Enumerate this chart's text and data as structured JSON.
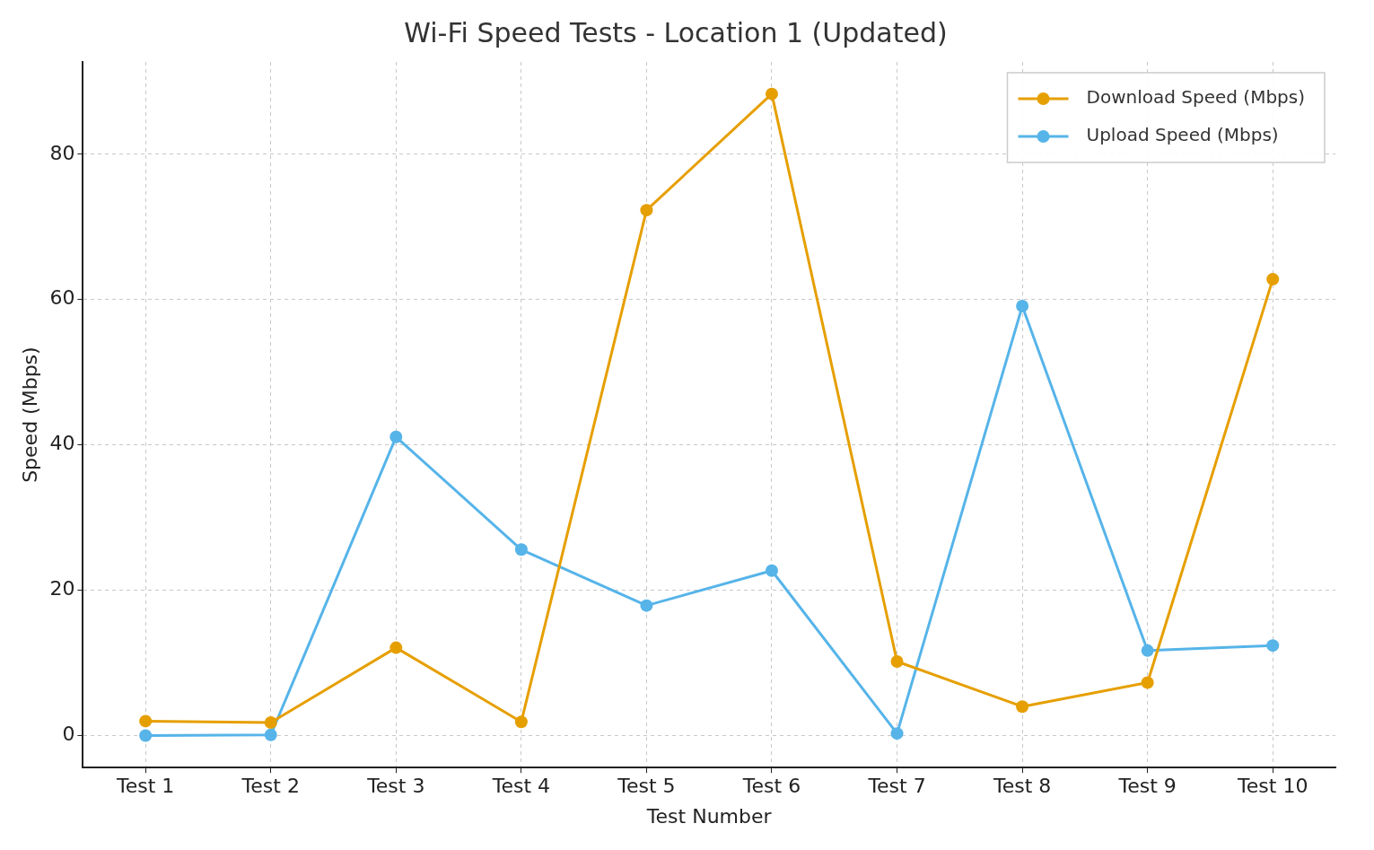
{
  "chart_data": {
    "type": "line",
    "title": "Wi-Fi Speed Tests - Location 1 (Updated)",
    "xlabel": "Test Number",
    "ylabel": "Speed (Mbps)",
    "categories": [
      "Test 1",
      "Test 2",
      "Test 3",
      "Test 4",
      "Test 5",
      "Test 6",
      "Test 7",
      "Test 8",
      "Test 9",
      "Test 10"
    ],
    "series": [
      {
        "name": "Download Speed (Mbps)",
        "color": "#e69f00",
        "values": [
          2.0,
          1.8,
          12.1,
          1.9,
          72.3,
          88.3,
          10.2,
          4.0,
          7.3,
          62.8
        ]
      },
      {
        "name": "Upload Speed (Mbps)",
        "color": "#56b4e9",
        "values": [
          0.0,
          0.1,
          41.1,
          25.6,
          17.9,
          22.7,
          0.3,
          59.1,
          11.7,
          12.4
        ]
      }
    ],
    "ylim": [
      -4.4,
      92.7
    ],
    "yticks": [
      0,
      20,
      40,
      60,
      80
    ],
    "grid": true,
    "legend": "top right",
    "marker": "circle",
    "line_style": "solid"
  }
}
